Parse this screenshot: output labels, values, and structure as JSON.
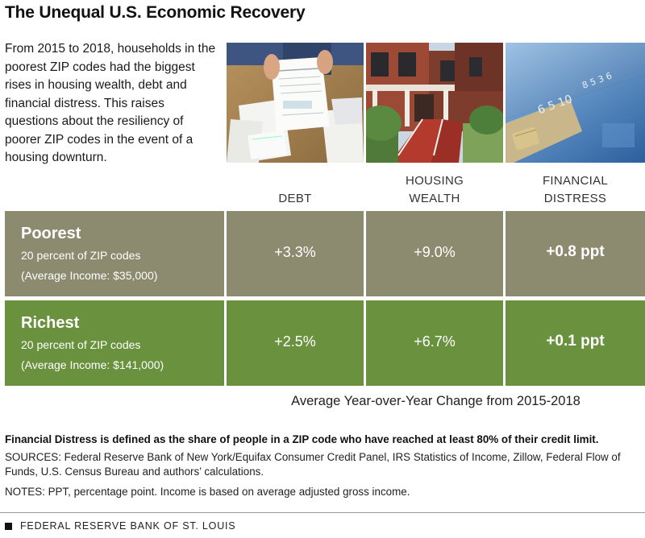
{
  "title": "The Unequal U.S. Economic Recovery",
  "intro": "From 2015 to 2018, households in the poorest ZIP codes had the biggest rises in housing wealth, debt and financial distress. This raises questions about the resiliency of poorer ZIP codes in the event of a housing downturn.",
  "chart_data": {
    "type": "table",
    "columns": [
      "DEBT",
      "HOUSING WEALTH",
      "FINANCIAL DISTRESS"
    ],
    "rows": [
      {
        "name": "Poorest",
        "subtitle": "20 percent of ZIP codes",
        "income": "(Average Income: $35,000)",
        "values": [
          "+3.3%",
          "+9.0%",
          "+0.8 ppt"
        ],
        "color": "#8c8b70"
      },
      {
        "name": "Richest",
        "subtitle": "20 percent of ZIP codes",
        "income": "(Average Income: $141,000)",
        "values": [
          "+2.5%",
          "+6.7%",
          "+0.1 ppt"
        ],
        "color": "#69913e"
      }
    ],
    "caption": "Average Year-over-Year Change from 2015-2018"
  },
  "definition": "Financial Distress is defined as the share of people in a ZIP code who have reached at least 80% of their credit limit.",
  "sources": "SOURCES: Federal Reserve Bank of New York/Equifax Consumer Credit Panel, IRS Statistics of Income, Zillow, Federal Flow of Funds, U.S. Census Bureau and authors’ calculations.",
  "notes": "NOTES: PPT, percentage point. Income is based on average adjusted gross income.",
  "footer": "FEDERAL RESERVE BANK OF ST. LOUIS",
  "photos": [
    "bills-paperwork-photo",
    "row-houses-photo",
    "credit-cards-photo"
  ]
}
